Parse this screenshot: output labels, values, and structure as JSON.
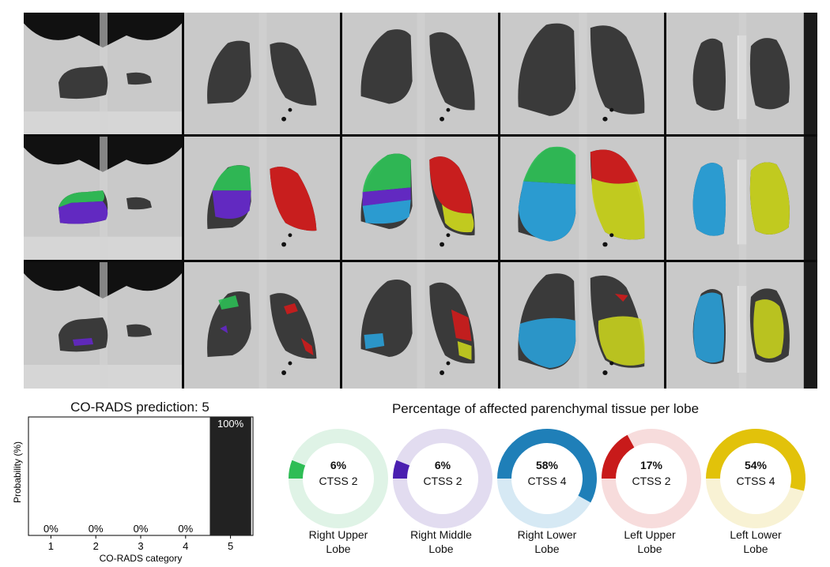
{
  "ct_panel": {
    "rows": [
      "original",
      "lobe-segmentation",
      "affected-tissue-overlay"
    ],
    "columns": 5,
    "lobe_colors": {
      "right_upper": "#2ebd55",
      "right_middle": "#6428c8",
      "right_lower": "#2aa0d8",
      "left_upper": "#d01c1c",
      "left_lower": "#c8d21e"
    }
  },
  "chart_data": [
    {
      "type": "bar",
      "title": "CO-RADS prediction: 5",
      "xlabel": "CO-RADS category",
      "ylabel": "Probability (%)",
      "categories": [
        "1",
        "2",
        "3",
        "4",
        "5"
      ],
      "values": [
        0,
        0,
        0,
        0,
        100
      ],
      "labels": [
        "0%",
        "0%",
        "0%",
        "0%",
        "100%"
      ],
      "ylim": [
        0,
        100
      ],
      "bar_color": "#222222"
    },
    {
      "type": "pie",
      "title": "Percentage of affected parenchymal tissue per lobe",
      "lobes": [
        {
          "name": "Right Upper Lobe",
          "line1": "Right Upper",
          "line2": "Lobe",
          "percent": 6,
          "percent_label": "6%",
          "ctss": "CTSS 2",
          "color": "#2ebd55",
          "light": "#dff3e6"
        },
        {
          "name": "Right Middle Lobe",
          "line1": "Right Middle",
          "line2": "Lobe",
          "percent": 6,
          "percent_label": "6%",
          "ctss": "CTSS 2",
          "color": "#4a1fb0",
          "light": "#e2dcf0"
        },
        {
          "name": "Right Lower Lobe",
          "line1": "Right Lower",
          "line2": "Lobe",
          "percent": 58,
          "percent_label": "58%",
          "ctss": "CTSS 4",
          "color": "#1f7fb8",
          "light": "#d6e9f4"
        },
        {
          "name": "Left Upper Lobe",
          "line1": "Left Upper",
          "line2": "Lobe",
          "percent": 17,
          "percent_label": "17%",
          "ctss": "CTSS 2",
          "color": "#c81a1a",
          "light": "#f7dcdc"
        },
        {
          "name": "Left Lower Lobe",
          "line1": "Left Lower",
          "line2": "Lobe",
          "percent": 54,
          "percent_label": "54%",
          "ctss": "CTSS 4",
          "color": "#e2c20a",
          "light": "#f8f2d4"
        }
      ]
    }
  ]
}
